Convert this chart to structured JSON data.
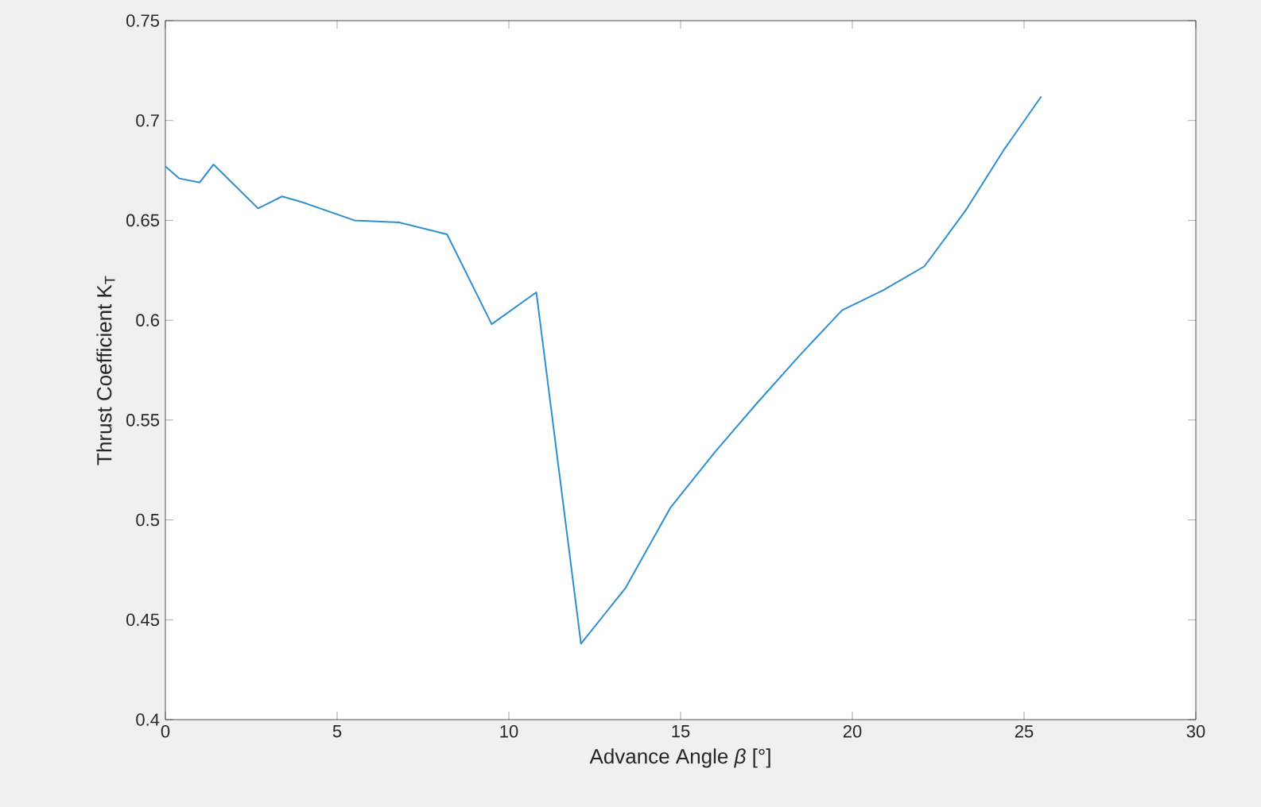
{
  "chart_data": {
    "type": "line",
    "xlabel": "Advance Angle *β* [°]",
    "ylabel": "Thrust Coefficient K$_{T}$",
    "x": [
      0,
      0.4,
      1.0,
      1.4,
      2.7,
      3.4,
      4.0,
      5.5,
      6.8,
      8.2,
      9.5,
      10.8,
      12.1,
      13.4,
      14.7,
      16.0,
      17.2,
      18.5,
      19.7,
      20.9,
      22.1,
      23.3,
      24.4,
      25.5
    ],
    "series": [
      {
        "color": "#2e8fd0",
        "values": [
          0.677,
          0.671,
          0.669,
          0.678,
          0.656,
          0.662,
          0.659,
          0.65,
          0.649,
          0.643,
          0.598,
          0.614,
          0.438,
          0.466,
          0.506,
          0.534,
          0.558,
          0.583,
          0.605,
          0.615,
          0.627,
          0.655,
          0.685,
          0.712
        ]
      }
    ],
    "xlim": [
      0,
      30
    ],
    "ylim": [
      0.4,
      0.75
    ],
    "xticks": [
      0,
      5,
      10,
      15,
      20,
      25,
      30
    ],
    "yticks": [
      0.4,
      0.45,
      0.5,
      0.55,
      0.6,
      0.65,
      0.7,
      0.75
    ],
    "grid": false,
    "marker": "none",
    "line_style": "solid"
  }
}
